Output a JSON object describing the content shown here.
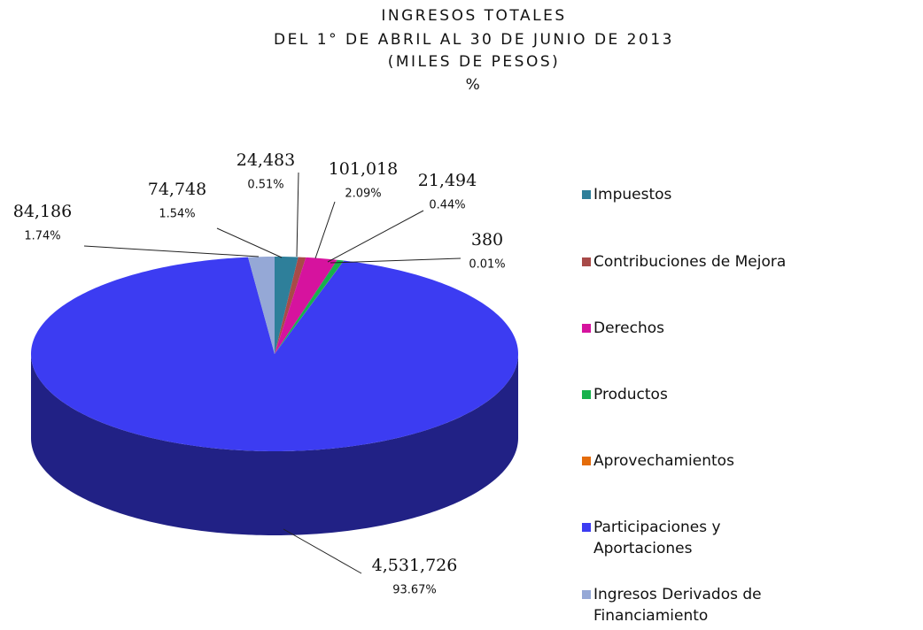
{
  "chart_data": {
    "type": "pie3d",
    "title": [
      "INGRESOS TOTALES",
      "DEL 1° DE ABRIL AL 30 DE JUNIO DE 2013",
      "(MILES DE PESOS)",
      "%"
    ],
    "categories": [
      "Impuestos",
      "Contribuciones de Mejora",
      "Derechos",
      "Productos",
      "Aprovechamientos",
      "Participaciones y Aportaciones",
      "Ingresos Derivados de Financiamiento"
    ],
    "values": [
      74748,
      24483,
      101018,
      21494,
      380,
      4531726,
      84186
    ],
    "value_labels": [
      "74,748",
      "24,483",
      "101,018",
      "21,494",
      "380",
      "4,531,726",
      "84,186"
    ],
    "percent_labels": [
      "1.54%",
      "0.51%",
      "2.09%",
      "0.44%",
      "0.01%",
      "93.67%",
      "1.74%"
    ],
    "colors": [
      "#2e7f9a",
      "#a84a48",
      "#d6139e",
      "#16b24c",
      "#e46c0a",
      "#3c3cf2",
      "#95a8d6"
    ],
    "legend": "right"
  }
}
